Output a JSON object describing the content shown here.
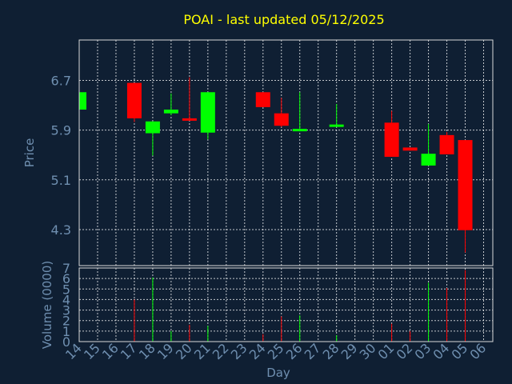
{
  "chart_data": {
    "type": "candlestick",
    "title": "POAI - last updated 05/12/2025",
    "ylabel": "Price",
    "volume_ylabel": "Volume (0000)",
    "xlabel": "Day",
    "price_ylim": [
      3.72,
      7.35
    ],
    "price_ticks": [
      "6.7",
      "5.9",
      "5.1",
      "4.3"
    ],
    "volume_ylim": [
      0,
      7
    ],
    "volume_ticks": [
      "0",
      "1",
      "2",
      "3",
      "4",
      "5",
      "6",
      "7"
    ],
    "x_ticks": [
      "14",
      "15",
      "16",
      "17",
      "18",
      "19",
      "20",
      "21",
      "22",
      "23",
      "24",
      "25",
      "26",
      "27",
      "28",
      "29",
      "30",
      "01",
      "02",
      "03",
      "04",
      "05",
      "06"
    ],
    "grid": true,
    "colors": {
      "up": "#00ff00",
      "down": "#ff0000",
      "background": "#0f1f33",
      "title": "#ffff00",
      "text": "#6f8fb0",
      "frame": "#d8d8d8"
    },
    "candles": [
      {
        "day": "14",
        "open": 6.23,
        "close": 6.51,
        "high": 6.51,
        "low": 6.23
      },
      {
        "day": "17",
        "open": 6.66,
        "close": 6.09,
        "high": 6.66,
        "low": 6.03
      },
      {
        "day": "18",
        "open": 5.85,
        "close": 6.04,
        "high": 6.04,
        "low": 5.49
      },
      {
        "day": "19",
        "open": 6.17,
        "close": 6.23,
        "high": 6.49,
        "low": 6.14
      },
      {
        "day": "20",
        "open": 6.09,
        "close": 6.06,
        "high": 6.75,
        "low": 6.05
      },
      {
        "day": "21",
        "open": 5.86,
        "close": 6.51,
        "high": 6.51,
        "low": 5.75
      },
      {
        "day": "24",
        "open": 6.51,
        "close": 6.27,
        "high": 6.51,
        "low": 6.27
      },
      {
        "day": "25",
        "open": 6.17,
        "close": 5.97,
        "high": 6.42,
        "low": 5.95
      },
      {
        "day": "26",
        "open": 5.89,
        "close": 5.92,
        "high": 6.51,
        "low": 5.88
      },
      {
        "day": "28",
        "open": 5.97,
        "close": 5.99,
        "high": 6.32,
        "low": 5.96
      },
      {
        "day": "01",
        "open": 6.02,
        "close": 5.47,
        "high": 6.21,
        "low": 5.47
      },
      {
        "day": "02",
        "open": 5.62,
        "close": 5.57,
        "high": 5.62,
        "low": 5.57
      },
      {
        "day": "03",
        "open": 5.33,
        "close": 5.52,
        "high": 6.0,
        "low": 5.33
      },
      {
        "day": "04",
        "open": 5.82,
        "close": 5.51,
        "high": 5.87,
        "low": 5.51
      },
      {
        "day": "05",
        "open": 5.74,
        "close": 4.29,
        "high": 5.74,
        "low": 3.93
      }
    ],
    "volume": [
      {
        "day": "14",
        "value": 0.05
      },
      {
        "day": "17",
        "value": 4.0
      },
      {
        "day": "18",
        "value": 6.1
      },
      {
        "day": "19",
        "value": 1.0
      },
      {
        "day": "20",
        "value": 1.6
      },
      {
        "day": "21",
        "value": 1.5
      },
      {
        "day": "24",
        "value": 0.7
      },
      {
        "day": "25",
        "value": 2.4
      },
      {
        "day": "26",
        "value": 2.5
      },
      {
        "day": "28",
        "value": 0.6
      },
      {
        "day": "01",
        "value": 1.7
      },
      {
        "day": "02",
        "value": 1.0
      },
      {
        "day": "03",
        "value": 5.6
      },
      {
        "day": "04",
        "value": 5.1
      },
      {
        "day": "05",
        "value": 6.8
      }
    ]
  }
}
